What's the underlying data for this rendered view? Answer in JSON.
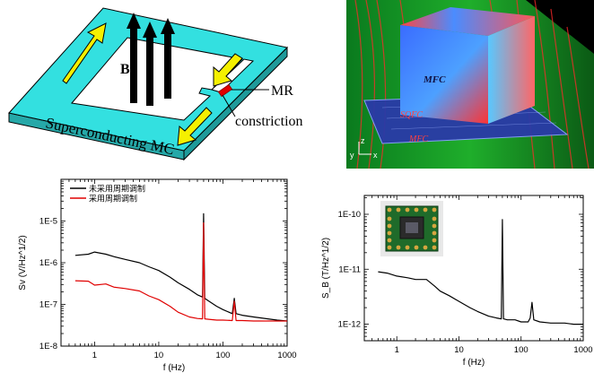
{
  "diagram": {
    "field_label": "B",
    "loop_label": "Superconducting MC",
    "mr_label": "MR",
    "constriction_label": "constriction"
  },
  "simulation": {
    "mfc_label": "MFC",
    "plate_label_top": "SQFC",
    "plate_label_bottom": "MFC",
    "axis_y": "y",
    "axis_z": "z",
    "axis_x": "x"
  },
  "chart_data": [
    {
      "type": "line",
      "xlabel": "f (Hz)",
      "ylabel": "Sv (V/Hz^1/2)",
      "xscale": "log",
      "yscale": "log",
      "xlim": [
        0.3,
        1000
      ],
      "ylim": [
        1e-08,
        0.0001
      ],
      "x_ticks": [
        "1",
        "10",
        "100",
        "1000"
      ],
      "y_ticks": [
        "1E-8",
        "1E-7",
        "1E-6",
        "1E-5"
      ],
      "legend_position": "top-left",
      "series": [
        {
          "name": "未采用周期调制",
          "color": "#000000",
          "x": [
            0.5,
            0.8,
            1.0,
            1.5,
            2,
            3,
            5,
            7,
            10,
            15,
            20,
            30,
            40,
            48,
            50,
            52,
            60,
            80,
            100,
            140,
            150,
            160,
            200,
            300,
            500,
            700,
            1000
          ],
          "values": [
            1.5e-06,
            1.6e-06,
            1.8e-06,
            1.6e-06,
            1.4e-06,
            1.2e-06,
            1e-06,
            8e-07,
            6.5e-07,
            4.5e-07,
            3.3e-07,
            2.3e-07,
            1.7e-07,
            1.5e-07,
            1.5e-05,
            1.4e-07,
            1.2e-07,
            9e-08,
            7.5e-08,
            6e-08,
            1.4e-07,
            6e-08,
            5.5e-08,
            5e-08,
            4.5e-08,
            4.2e-08,
            4e-08
          ]
        },
        {
          "name": "采用周期调制",
          "color": "#e00000",
          "x": [
            0.5,
            0.8,
            1.0,
            1.5,
            2,
            3,
            5,
            7,
            10,
            15,
            20,
            30,
            40,
            48,
            50,
            52,
            60,
            80,
            100,
            140,
            150,
            160,
            200,
            300,
            500,
            700,
            1000
          ],
          "values": [
            3.7e-07,
            3.6e-07,
            2.9e-07,
            3.1e-07,
            2.6e-07,
            2.4e-07,
            2.1e-07,
            1.6e-07,
            1.3e-07,
            9e-08,
            6.5e-08,
            5e-08,
            4.6e-08,
            4.5e-08,
            9e-06,
            4.5e-08,
            4.4e-08,
            4.2e-08,
            4.2e-08,
            4.1e-08,
            1.2e-07,
            4.1e-08,
            4.1e-08,
            4e-08,
            4e-08,
            4e-08,
            4e-08
          ]
        }
      ]
    },
    {
      "type": "line",
      "xlabel": "f (Hz)",
      "ylabel": "S_B (T/Hz^1/2)",
      "xscale": "log",
      "yscale": "log",
      "xlim": [
        0.3,
        1000
      ],
      "ylim": [
        5e-13,
        2.2e-10
      ],
      "x_ticks": [
        "1",
        "10",
        "100",
        "1000"
      ],
      "y_ticks": [
        "1E-12",
        "1E-11",
        "1E-10"
      ],
      "has_photo_inset": true,
      "series": [
        {
          "name": "",
          "color": "#000000",
          "x": [
            0.5,
            0.7,
            1.0,
            1.5,
            2,
            3,
            4,
            5,
            7,
            10,
            15,
            20,
            30,
            40,
            48,
            50,
            52,
            60,
            80,
            100,
            130,
            140,
            150,
            160,
            200,
            300,
            500,
            700,
            1000
          ],
          "values": [
            9e-12,
            8.5e-12,
            7.5e-12,
            7e-12,
            6.5e-12,
            6.5e-12,
            5e-12,
            4e-12,
            3.3e-12,
            2.6e-12,
            2e-12,
            1.7e-12,
            1.4e-12,
            1.3e-12,
            1.25e-12,
            8e-11,
            1.25e-12,
            1.2e-12,
            1.2e-12,
            1.1e-12,
            1.1e-12,
            1.3e-12,
            2.5e-12,
            1.2e-12,
            1.1e-12,
            1.05e-12,
            1.05e-12,
            1e-12,
            1e-12
          ]
        }
      ]
    }
  ]
}
